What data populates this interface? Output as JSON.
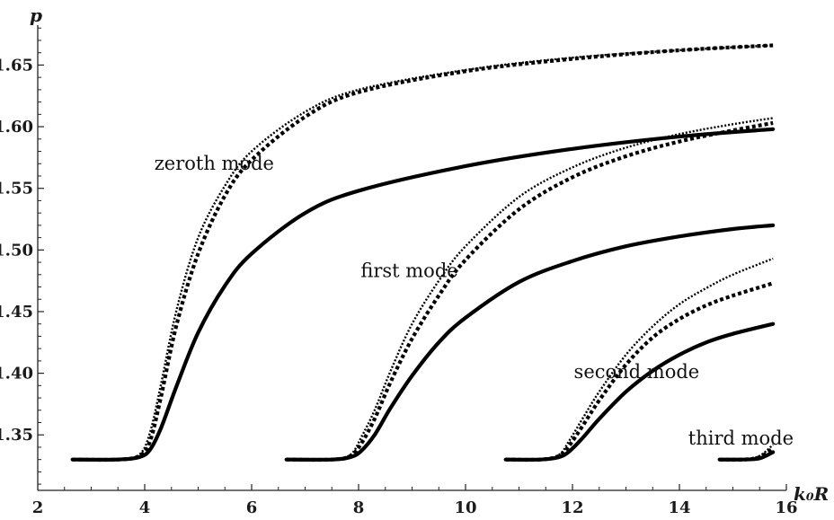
{
  "chart_data": {
    "type": "line",
    "title": "",
    "xlabel": "k₀R",
    "ylabel": "p",
    "xlim": [
      2,
      16
    ],
    "ylim": [
      1.305,
      1.678
    ],
    "grid": false,
    "x_ticks": [
      "2",
      "4",
      "6",
      "8",
      "10",
      "12",
      "14",
      "16"
    ],
    "y_ticks": [
      "1.35",
      "1.40",
      "1.45",
      "1.50",
      "1.55",
      "1.60",
      "1.65"
    ],
    "annotations": [
      {
        "text": "zeroth mode",
        "x": 5.3,
        "y": 1.565
      },
      {
        "text": "first mode",
        "x": 8.95,
        "y": 1.478
      },
      {
        "text": "second mode",
        "x": 13.2,
        "y": 1.396
      },
      {
        "text": "third mode",
        "x": 15.15,
        "y": 1.342
      }
    ],
    "series": [
      {
        "style": "solid",
        "x": [
          2.65,
          3.5,
          3.9,
          4.1,
          4.3,
          4.6,
          5.0,
          5.5,
          6.0,
          7.0,
          8.0,
          10.0,
          12.0,
          14.0,
          15.75
        ],
        "y": [
          1.33,
          1.33,
          1.332,
          1.338,
          1.355,
          1.39,
          1.433,
          1.471,
          1.497,
          1.53,
          1.548,
          1.568,
          1.582,
          1.592,
          1.598
        ]
      },
      {
        "style": "dashed",
        "x": [
          2.65,
          3.5,
          3.9,
          4.1,
          4.3,
          4.6,
          5.0,
          5.5,
          6.0,
          7.0,
          8.0,
          10.0,
          12.0,
          14.0,
          15.75
        ],
        "y": [
          1.33,
          1.33,
          1.333,
          1.345,
          1.38,
          1.44,
          1.497,
          1.544,
          1.573,
          1.608,
          1.628,
          1.645,
          1.655,
          1.662,
          1.666
        ]
      },
      {
        "style": "dotted",
        "x": [
          2.65,
          3.5,
          3.9,
          4.1,
          4.3,
          4.6,
          5.0,
          5.5,
          6.0,
          7.0,
          8.0,
          10.0,
          12.0,
          14.0,
          15.75
        ],
        "y": [
          1.33,
          1.33,
          1.334,
          1.352,
          1.39,
          1.452,
          1.51,
          1.552,
          1.58,
          1.612,
          1.63,
          1.646,
          1.656,
          1.662,
          1.666
        ]
      },
      {
        "style": "solid",
        "x": [
          6.65,
          7.5,
          7.85,
          8.05,
          8.3,
          8.6,
          9.0,
          9.5,
          10.0,
          11.0,
          12.0,
          13.0,
          14.0,
          15.0,
          15.75
        ],
        "y": [
          1.33,
          1.33,
          1.332,
          1.337,
          1.35,
          1.372,
          1.398,
          1.425,
          1.445,
          1.474,
          1.491,
          1.503,
          1.511,
          1.517,
          1.52
        ]
      },
      {
        "style": "dashed",
        "x": [
          6.65,
          7.5,
          7.85,
          8.05,
          8.3,
          8.6,
          9.0,
          9.5,
          10.0,
          11.0,
          12.0,
          13.0,
          14.0,
          15.0,
          15.75
        ],
        "y": [
          1.33,
          1.33,
          1.333,
          1.343,
          1.363,
          1.393,
          1.428,
          1.463,
          1.492,
          1.533,
          1.559,
          1.576,
          1.588,
          1.597,
          1.603
        ]
      },
      {
        "style": "dotted",
        "x": [
          6.65,
          7.5,
          7.85,
          8.05,
          8.3,
          8.6,
          9.0,
          9.5,
          10.0,
          11.0,
          12.0,
          13.0,
          14.0,
          15.0,
          15.75
        ],
        "y": [
          1.33,
          1.33,
          1.334,
          1.348,
          1.37,
          1.402,
          1.44,
          1.475,
          1.503,
          1.543,
          1.567,
          1.583,
          1.594,
          1.602,
          1.607
        ]
      },
      {
        "style": "solid",
        "x": [
          10.75,
          11.4,
          11.75,
          11.95,
          12.2,
          12.5,
          13.0,
          13.5,
          14.0,
          14.5,
          15.0,
          15.75
        ],
        "y": [
          1.33,
          1.33,
          1.332,
          1.337,
          1.348,
          1.363,
          1.385,
          1.402,
          1.415,
          1.425,
          1.432,
          1.44
        ]
      },
      {
        "style": "dashed",
        "x": [
          10.75,
          11.4,
          11.75,
          11.95,
          12.2,
          12.5,
          13.0,
          13.5,
          14.0,
          14.5,
          15.0,
          15.75
        ],
        "y": [
          1.33,
          1.33,
          1.333,
          1.342,
          1.358,
          1.378,
          1.407,
          1.429,
          1.444,
          1.455,
          1.463,
          1.473
        ]
      },
      {
        "style": "dotted",
        "x": [
          10.75,
          11.4,
          11.75,
          11.95,
          12.2,
          12.5,
          13.0,
          13.5,
          14.0,
          14.5,
          15.0,
          15.75
        ],
        "y": [
          1.33,
          1.33,
          1.334,
          1.346,
          1.364,
          1.385,
          1.415,
          1.438,
          1.456,
          1.469,
          1.48,
          1.493
        ]
      },
      {
        "style": "solid",
        "x": [
          14.75,
          15.2,
          15.5,
          15.75
        ],
        "y": [
          1.33,
          1.33,
          1.331,
          1.336
        ]
      },
      {
        "style": "dashed",
        "x": [
          14.75,
          15.2,
          15.5,
          15.75
        ],
        "y": [
          1.33,
          1.33,
          1.332,
          1.339
        ]
      },
      {
        "style": "dotted",
        "x": [
          14.75,
          15.2,
          15.5,
          15.75
        ],
        "y": [
          1.33,
          1.33,
          1.333,
          1.342
        ]
      }
    ]
  }
}
